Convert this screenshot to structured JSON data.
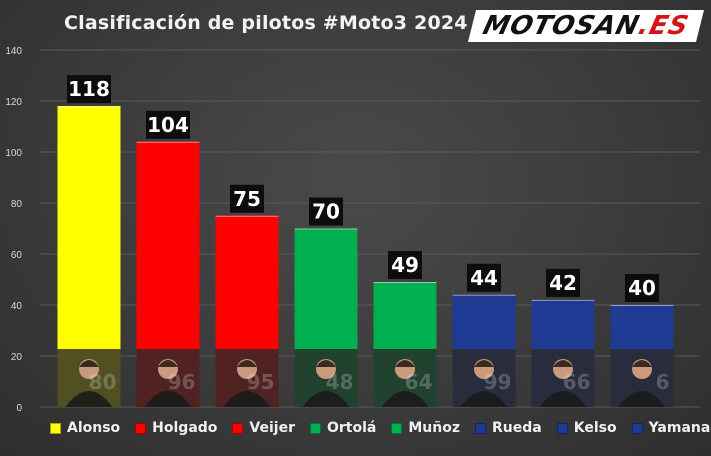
{
  "header": {
    "title": "Clasificación de pilotos #Moto3 2024",
    "logo_main": "MOTOSAN",
    "logo_suffix": ".ES"
  },
  "chart_data": {
    "type": "bar",
    "title": "Clasificación de pilotos #Moto3 2024",
    "xlabel": "",
    "ylabel": "",
    "ylim": [
      0,
      140
    ],
    "yticks": [
      0,
      20,
      40,
      60,
      80,
      100,
      120,
      140
    ],
    "grid": true,
    "legend_position": "bottom",
    "categories": [
      "Alonso",
      "Holgado",
      "Veijer",
      "Ortolá",
      "Muñoz",
      "Rueda",
      "Kelso",
      "Yamanaka"
    ],
    "values": [
      118,
      104,
      75,
      70,
      49,
      44,
      42,
      40
    ],
    "data_labels": [
      "118",
      "104",
      "75",
      "70",
      "49",
      "44",
      "42",
      "40"
    ],
    "bar_colors": [
      "#ffff00",
      "#ff0000",
      "#ff0000",
      "#00b050",
      "#00b050",
      "#1f3a93",
      "#1f3a93",
      "#1f3a93"
    ],
    "rider_numbers": [
      "80",
      "96",
      "95",
      "48",
      "64",
      "99",
      "66",
      "6"
    ]
  }
}
